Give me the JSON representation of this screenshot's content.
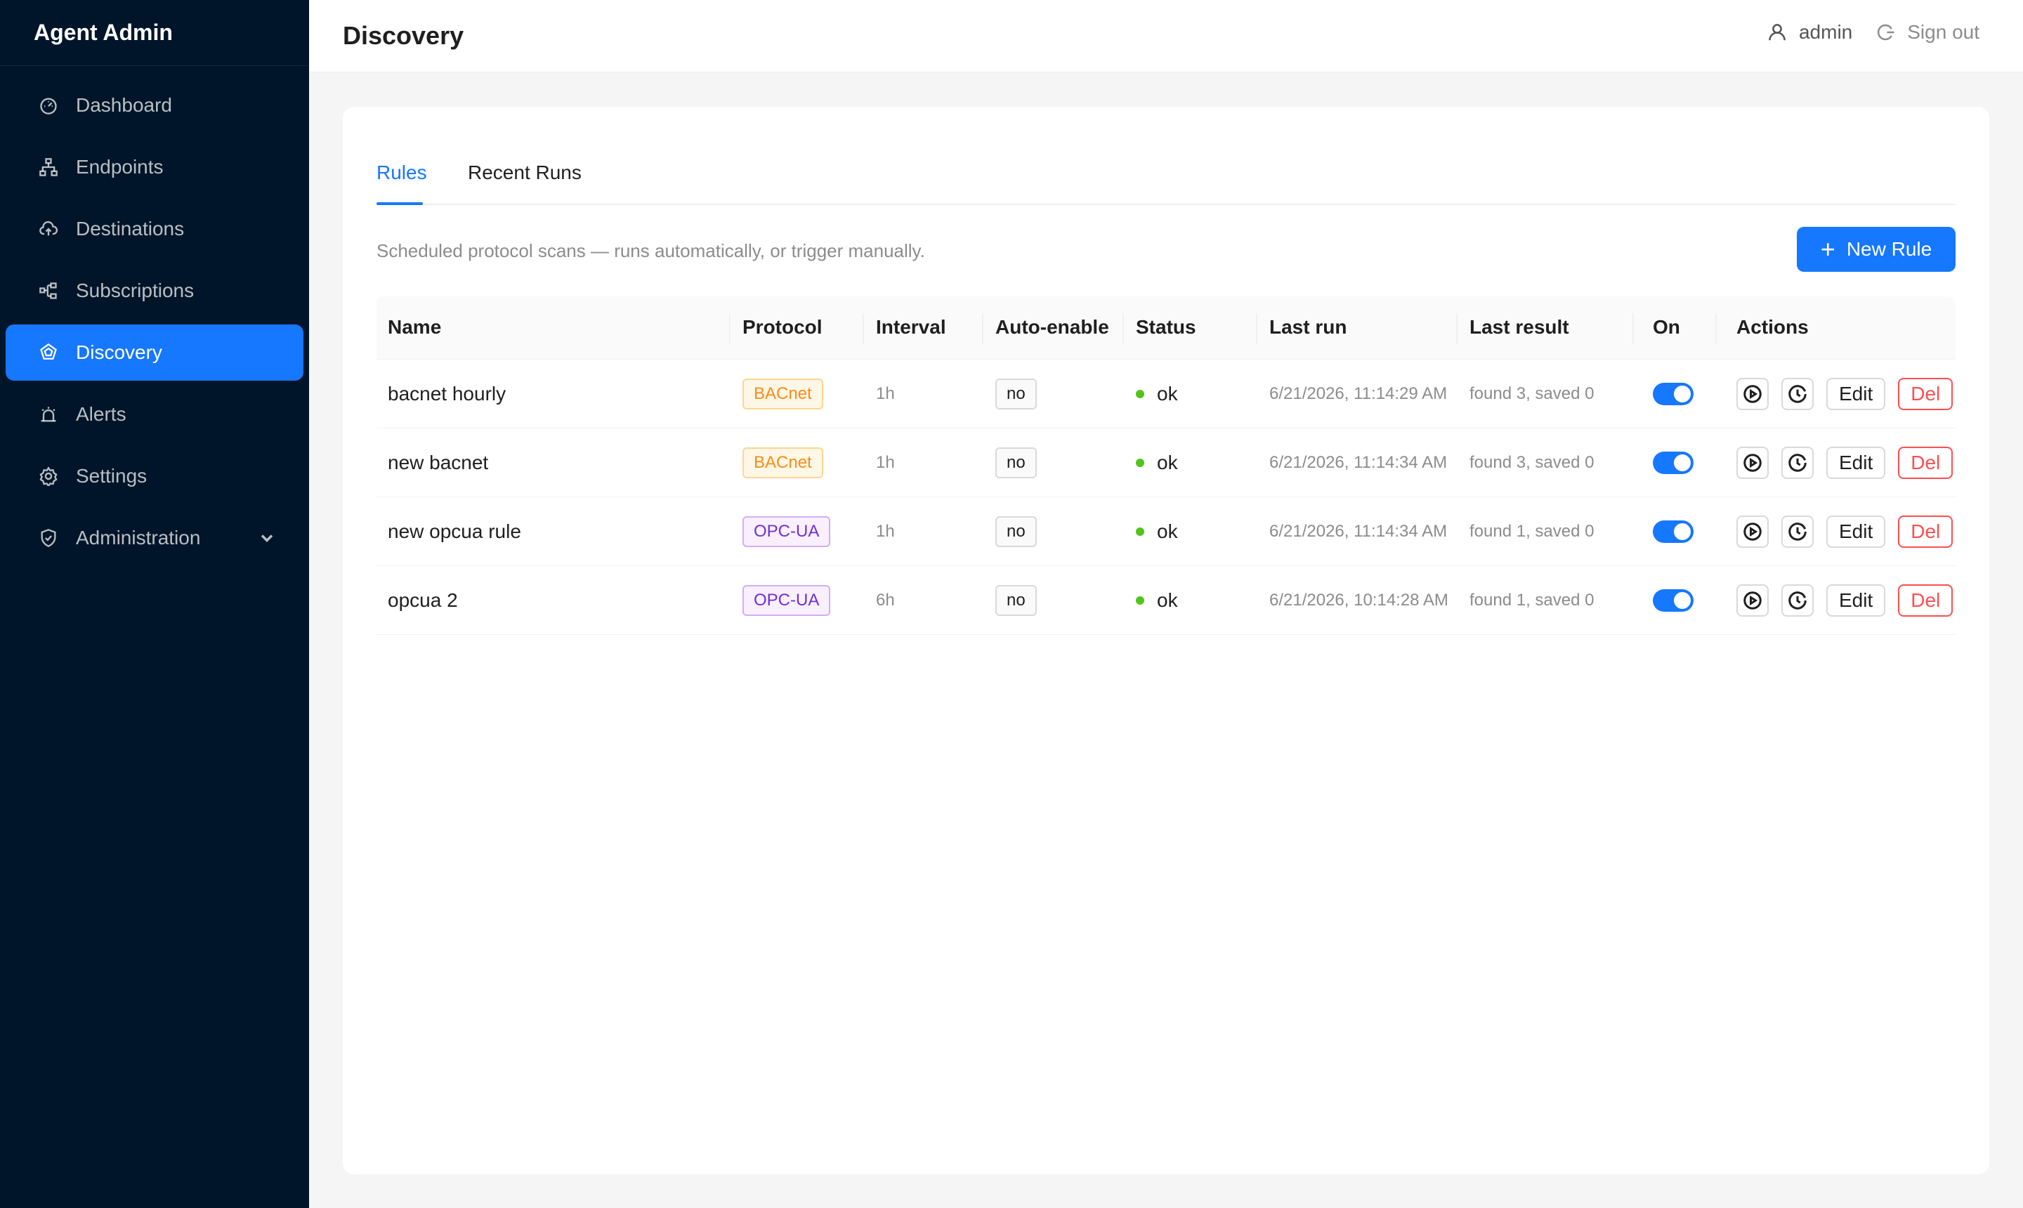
{
  "sidebar": {
    "brand": "Agent Admin",
    "items": [
      {
        "label": "Dashboard",
        "icon": "dashboard-icon"
      },
      {
        "label": "Endpoints",
        "icon": "sitemap-icon"
      },
      {
        "label": "Destinations",
        "icon": "cloud-upload-icon"
      },
      {
        "label": "Subscriptions",
        "icon": "subscriptions-icon"
      },
      {
        "label": "Discovery",
        "icon": "discovery-icon",
        "active": true
      },
      {
        "label": "Alerts",
        "icon": "alarm-icon"
      },
      {
        "label": "Settings",
        "icon": "gear-icon"
      },
      {
        "label": "Administration",
        "icon": "shield-icon",
        "has_submenu": true
      }
    ]
  },
  "header": {
    "title": "Discovery",
    "user": "admin",
    "signout": "Sign out"
  },
  "tabs": [
    "Rules",
    "Recent Runs"
  ],
  "active_tab": "Rules",
  "description": "Scheduled protocol scans — runs automatically, or trigger manually.",
  "new_rule_label": "New Rule",
  "table": {
    "columns": [
      "Name",
      "Protocol",
      "Interval",
      "Auto-enable",
      "Status",
      "Last run",
      "Last result",
      "On",
      "Actions"
    ],
    "rows": [
      {
        "name": "bacnet hourly",
        "protocol": "BACnet",
        "interval": "1h",
        "auto_enable": "no",
        "status": "ok",
        "last_run": "6/21/2026, 11:14:29 AM",
        "last_result": "found 3, saved 0",
        "on": true
      },
      {
        "name": "new bacnet",
        "protocol": "BACnet",
        "interval": "1h",
        "auto_enable": "no",
        "status": "ok",
        "last_run": "6/21/2026, 11:14:34 AM",
        "last_result": "found 3, saved 0",
        "on": true
      },
      {
        "name": "new opcua rule",
        "protocol": "OPC-UA",
        "interval": "1h",
        "auto_enable": "no",
        "status": "ok",
        "last_run": "6/21/2026, 11:14:34 AM",
        "last_result": "found 1, saved 0",
        "on": true
      },
      {
        "name": "opcua 2",
        "protocol": "OPC-UA",
        "interval": "6h",
        "auto_enable": "no",
        "status": "ok",
        "last_run": "6/21/2026, 10:14:28 AM",
        "last_result": "found 1, saved 0",
        "on": true
      }
    ],
    "action_labels": {
      "edit": "Edit",
      "delete": "Del"
    }
  },
  "colors": {
    "sidebar_bg": "#001529",
    "accent": "#1677ff",
    "bacnet": "#fa8c16",
    "opcua": "#722ed1",
    "ok": "#52c41a",
    "danger": "#ff4d4f"
  }
}
